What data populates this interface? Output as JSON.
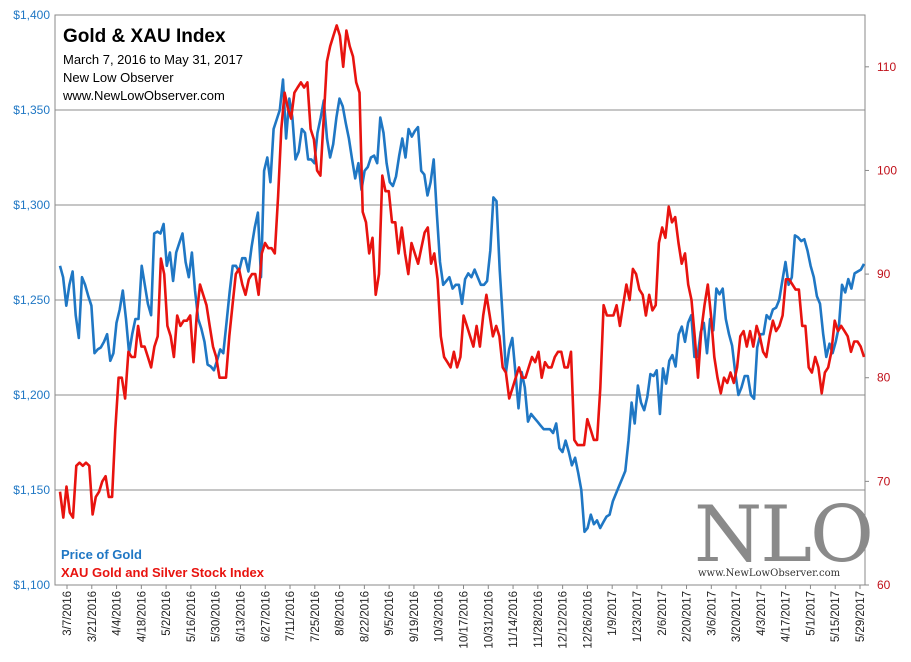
{
  "chart_data": {
    "type": "line",
    "title": "Gold & XAU Index",
    "subtitle": "March 7, 2016 to May 31, 2017",
    "source": "New Low Observer",
    "website": "www.NewLowObserver.com",
    "watermark": {
      "text": "NLO",
      "url": "www.NewLowObserver.com"
    },
    "left_axis": {
      "ylim": [
        1100,
        1400
      ],
      "ticks": [
        "$1,100",
        "$1,150",
        "$1,200",
        "$1,250",
        "$1,300",
        "$1,350",
        "$1,400"
      ],
      "color": "#1f77c4"
    },
    "right_axis": {
      "ylim": [
        60,
        115
      ],
      "ticks": [
        "60",
        "70",
        "80",
        "90",
        "100",
        "110"
      ],
      "color": "#c0101a"
    },
    "x_ticks": [
      "3/7/2016",
      "3/21/2016",
      "4/4/2016",
      "4/18/2016",
      "5/2/2016",
      "5/16/2016",
      "5/30/2016",
      "6/13/2016",
      "6/27/2016",
      "7/11/2016",
      "7/25/2016",
      "8/8/2016",
      "8/22/2016",
      "9/5/2016",
      "9/19/2016",
      "10/3/2016",
      "10/17/2016",
      "10/31/2016",
      "11/14/2016",
      "11/28/2016",
      "12/12/2016",
      "12/26/2016",
      "1/9/2017",
      "1/23/2017",
      "2/6/2017",
      "2/20/2017",
      "3/6/2017",
      "3/20/2017",
      "4/3/2017",
      "4/17/2017",
      "5/1/2017",
      "5/15/2017",
      "5/29/2017"
    ],
    "gridlines": true,
    "series": [
      {
        "name": "Price of Gold",
        "axis": "left",
        "color": "#1f77c4",
        "values": [
          1268,
          1262,
          1247,
          1258,
          1265,
          1242,
          1230,
          1262,
          1258,
          1252,
          1247,
          1222,
          1224,
          1225,
          1228,
          1232,
          1218,
          1222,
          1238,
          1245,
          1255,
          1240,
          1222,
          1232,
          1240,
          1240,
          1268,
          1258,
          1248,
          1242,
          1285,
          1286,
          1285,
          1290,
          1268,
          1275,
          1260,
          1275,
          1280,
          1285,
          1270,
          1262,
          1275,
          1255,
          1240,
          1235,
          1228,
          1216,
          1215,
          1213,
          1218,
          1224,
          1222,
          1238,
          1254,
          1268,
          1268,
          1265,
          1272,
          1272,
          1265,
          1278,
          1288,
          1296,
          1262,
          1318,
          1325,
          1312,
          1340,
          1345,
          1350,
          1366,
          1335,
          1356,
          1346,
          1324,
          1328,
          1340,
          1338,
          1324,
          1324,
          1322,
          1338,
          1346,
          1355,
          1335,
          1325,
          1332,
          1346,
          1356,
          1352,
          1343,
          1335,
          1324,
          1314,
          1322,
          1308,
          1318,
          1320,
          1325,
          1326,
          1322,
          1346,
          1338,
          1322,
          1312,
          1310,
          1315,
          1326,
          1335,
          1325,
          1340,
          1336,
          1339,
          1341,
          1318,
          1316,
          1305,
          1312,
          1324,
          1295,
          1270,
          1258,
          1260,
          1262,
          1256,
          1258,
          1258,
          1248,
          1261,
          1264,
          1262,
          1266,
          1262,
          1258,
          1258,
          1260,
          1276,
          1304,
          1302,
          1266,
          1240,
          1212,
          1224,
          1230,
          1212,
          1193,
          1212,
          1204,
          1186,
          1190,
          1188,
          1186,
          1184,
          1182,
          1182,
          1182,
          1180,
          1185,
          1172,
          1170,
          1176,
          1170,
          1163,
          1167,
          1159,
          1150,
          1128,
          1130,
          1137,
          1132,
          1134,
          1130,
          1133,
          1136,
          1137,
          1144,
          1148,
          1152,
          1156,
          1160,
          1176,
          1196,
          1185,
          1205,
          1196,
          1192,
          1199,
          1211,
          1210,
          1213,
          1190,
          1214,
          1206,
          1218,
          1221,
          1215,
          1232,
          1236,
          1228,
          1238,
          1242,
          1220,
          1220,
          1233,
          1238,
          1222,
          1240,
          1234,
          1256,
          1253,
          1256,
          1240,
          1232,
          1226,
          1212,
          1200,
          1204,
          1210,
          1210,
          1200,
          1198,
          1225,
          1232,
          1232,
          1242,
          1240,
          1245,
          1246,
          1250,
          1260,
          1270,
          1258,
          1262,
          1284,
          1283,
          1281,
          1282,
          1276,
          1268,
          1262,
          1252,
          1248,
          1232,
          1220,
          1227,
          1222,
          1228,
          1236,
          1258,
          1254,
          1261,
          1256,
          1264,
          1265,
          1266,
          1269
        ]
      },
      {
        "name": "XAU Gold and Silver Stock Index",
        "axis": "right",
        "color": "#e8130f",
        "values": [
          69.0,
          66.5,
          69.5,
          67.0,
          66.5,
          71.5,
          71.8,
          71.5,
          71.8,
          71.5,
          66.8,
          68.5,
          69.0,
          70.0,
          70.5,
          68.5,
          68.5,
          75.0,
          80.0,
          80.0,
          78.0,
          82.5,
          82.0,
          82.0,
          85.0,
          83.0,
          83.0,
          82.0,
          81.0,
          83.0,
          84.0,
          91.5,
          90.0,
          85.0,
          84.0,
          82.0,
          86.0,
          85.0,
          85.5,
          85.5,
          86.0,
          81.5,
          86.0,
          89.0,
          88.0,
          87.0,
          85.0,
          83.0,
          82.0,
          80.0,
          80.0,
          80.0,
          84.0,
          87.0,
          90.0,
          90.5,
          89.0,
          88.0,
          89.5,
          90.0,
          90.0,
          88.0,
          92.0,
          93.0,
          92.5,
          92.5,
          92.0,
          97.5,
          104.0,
          107.5,
          106.0,
          105.0,
          107.5,
          108.0,
          108.5,
          108.0,
          108.5,
          104.0,
          103.0,
          100.0,
          99.5,
          105.0,
          110.5,
          112.0,
          113.0,
          114.0,
          113.0,
          110.0,
          113.5,
          112.0,
          111.0,
          108.5,
          107.5,
          96.0,
          95.0,
          92.0,
          93.5,
          88.0,
          90.0,
          99.5,
          98.0,
          98.0,
          95.0,
          95.0,
          92.0,
          94.5,
          92.0,
          90.0,
          93.0,
          92.0,
          91.0,
          92.5,
          94.0,
          94.5,
          91.0,
          92.0,
          89.5,
          84.0,
          82.0,
          81.5,
          81.0,
          82.5,
          81.0,
          82.0,
          86.0,
          85.0,
          84.0,
          83.0,
          85.0,
          83.0,
          86.0,
          88.0,
          86.0,
          84.0,
          85.0,
          84.0,
          81.0,
          80.5,
          78.0,
          79.0,
          80.0,
          81.0,
          80.0,
          80.0,
          81.0,
          82.0,
          81.5,
          82.5,
          80.0,
          81.5,
          81.0,
          81.0,
          82.0,
          82.5,
          82.5,
          81.0,
          81.0,
          82.5,
          74.0,
          73.5,
          73.5,
          73.5,
          76.0,
          75.0,
          74.0,
          74.0,
          79.0,
          87.0,
          86.0,
          86.0,
          86.0,
          87.0,
          85.0,
          87.0,
          89.0,
          87.5,
          90.5,
          90.0,
          88.5,
          88.0,
          86.0,
          88.0,
          86.5,
          87.0,
          93.0,
          94.5,
          93.5,
          96.5,
          95.0,
          95.5,
          93.0,
          91.0,
          92.0,
          89.0,
          87.5,
          84.0,
          80.0,
          84.5,
          87.0,
          89.0,
          86.0,
          82.0,
          80.0,
          78.5,
          80.0,
          79.5,
          80.5,
          79.5,
          81.0,
          84.0,
          84.5,
          83.0,
          84.5,
          83.0,
          85.0,
          84.0,
          82.5,
          82.0,
          84.0,
          85.5,
          84.5,
          85.0,
          86.0,
          89.5,
          89.5,
          89.0,
          88.5,
          88.5,
          85.0,
          85.0,
          81.0,
          80.5,
          82.0,
          81.0,
          78.5,
          80.5,
          81.0,
          82.5,
          85.5,
          84.5,
          85.0,
          84.5,
          84.0,
          82.5,
          83.5,
          83.5,
          83.0,
          82.0
        ]
      }
    ]
  }
}
